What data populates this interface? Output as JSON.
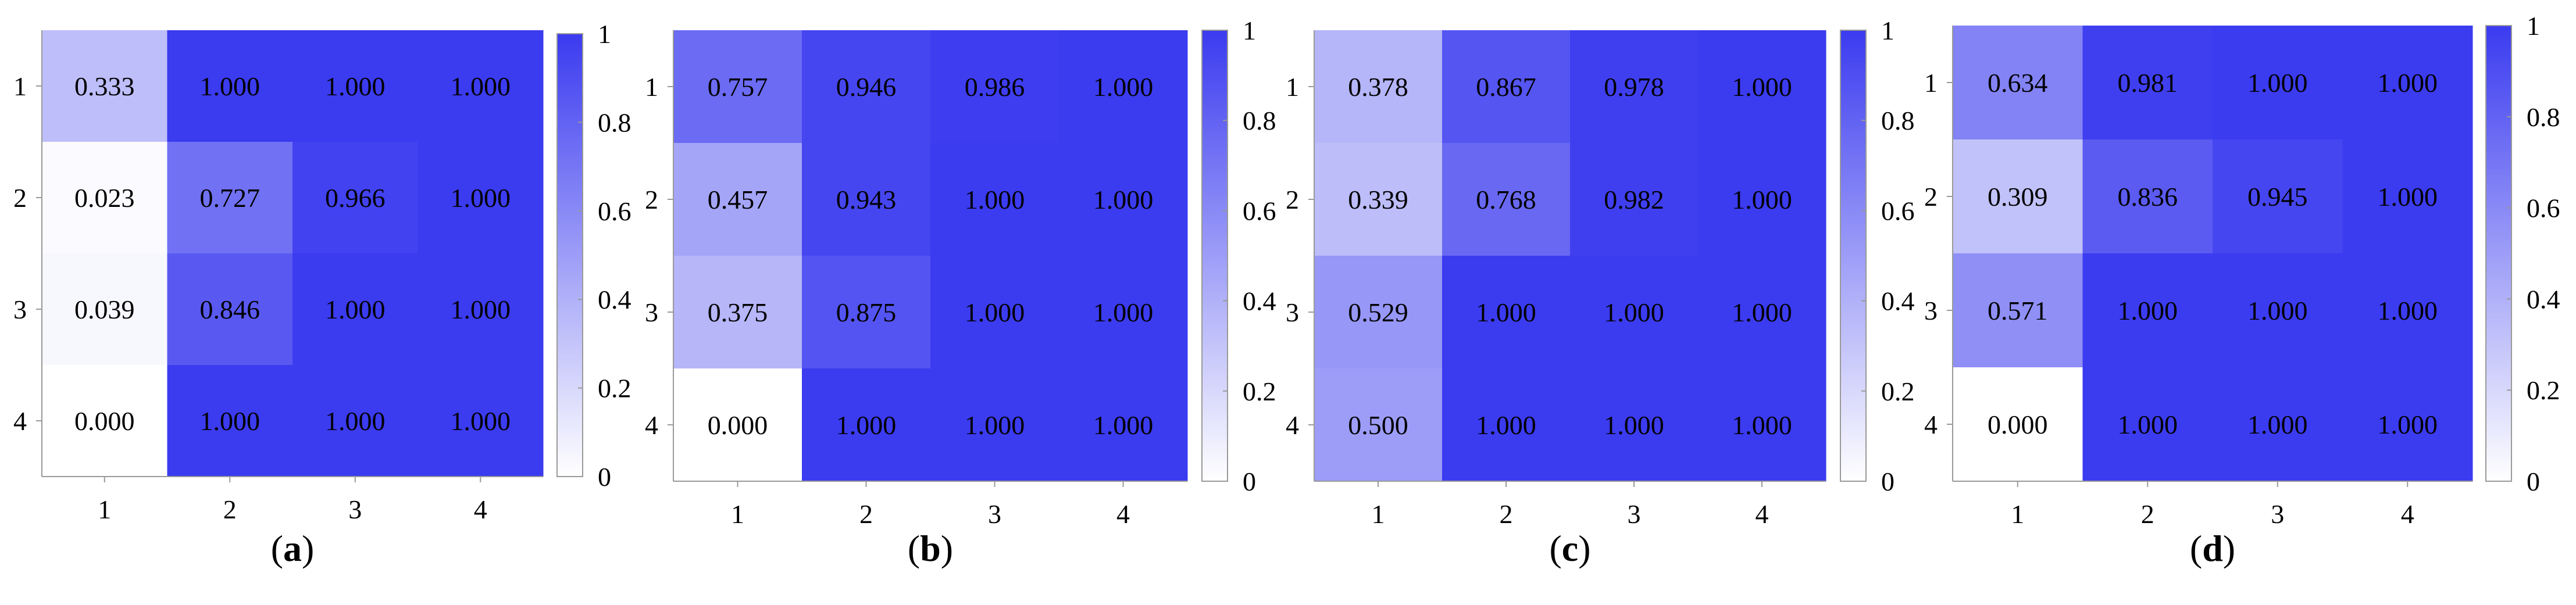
{
  "chart_data": [
    {
      "type": "heatmap",
      "panel_label": "a",
      "x_categories": [
        "1",
        "2",
        "3",
        "4"
      ],
      "y_categories": [
        "1",
        "2",
        "3",
        "4"
      ],
      "values": [
        [
          0.333,
          1.0,
          1.0,
          1.0
        ],
        [
          0.023,
          0.727,
          0.966,
          1.0
        ],
        [
          0.039,
          0.846,
          1.0,
          1.0
        ],
        [
          0.0,
          1.0,
          1.0,
          1.0
        ]
      ],
      "labels": [
        [
          "0.333",
          "1.000",
          "1.000",
          "1.000"
        ],
        [
          "0.023",
          "0.727",
          "0.966",
          "1.000"
        ],
        [
          "0.039",
          "0.846",
          "1.000",
          "1.000"
        ],
        [
          "0.000",
          "1.000",
          "1.000",
          "1.000"
        ]
      ],
      "colorbar": {
        "range": [
          0,
          1
        ],
        "ticks": [
          "0",
          "0.2",
          "0.4",
          "0.6",
          "0.8",
          "1"
        ]
      }
    },
    {
      "type": "heatmap",
      "panel_label": "b",
      "x_categories": [
        "1",
        "2",
        "3",
        "4"
      ],
      "y_categories": [
        "1",
        "2",
        "3",
        "4"
      ],
      "values": [
        [
          0.757,
          0.946,
          0.986,
          1.0
        ],
        [
          0.457,
          0.943,
          1.0,
          1.0
        ],
        [
          0.375,
          0.875,
          1.0,
          1.0
        ],
        [
          0.0,
          1.0,
          1.0,
          1.0
        ]
      ],
      "labels": [
        [
          "0.757",
          "0.946",
          "0.986",
          "1.000"
        ],
        [
          "0.457",
          "0.943",
          "1.000",
          "1.000"
        ],
        [
          "0.375",
          "0.875",
          "1.000",
          "1.000"
        ],
        [
          "0.000",
          "1.000",
          "1.000",
          "1.000"
        ]
      ],
      "colorbar": {
        "range": [
          0,
          1
        ],
        "ticks": [
          "0",
          "0.2",
          "0.4",
          "0.6",
          "0.8",
          "1"
        ]
      }
    },
    {
      "type": "heatmap",
      "panel_label": "c",
      "x_categories": [
        "1",
        "2",
        "3",
        "4"
      ],
      "y_categories": [
        "1",
        "2",
        "3",
        "4"
      ],
      "values": [
        [
          0.378,
          0.867,
          0.978,
          1.0
        ],
        [
          0.339,
          0.768,
          0.982,
          1.0
        ],
        [
          0.529,
          1.0,
          1.0,
          1.0
        ],
        [
          0.5,
          1.0,
          1.0,
          1.0
        ]
      ],
      "labels": [
        [
          "0.378",
          "0.867",
          "0.978",
          "1.000"
        ],
        [
          "0.339",
          "0.768",
          "0.982",
          "1.000"
        ],
        [
          "0.529",
          "1.000",
          "1.000",
          "1.000"
        ],
        [
          "0.500",
          "1.000",
          "1.000",
          "1.000"
        ]
      ],
      "colorbar": {
        "range": [
          0,
          1
        ],
        "ticks": [
          "0",
          "0.2",
          "0.4",
          "0.6",
          "0.8",
          "1"
        ]
      }
    },
    {
      "type": "heatmap",
      "panel_label": "d",
      "x_categories": [
        "1",
        "2",
        "3",
        "4"
      ],
      "y_categories": [
        "1",
        "2",
        "3",
        "4"
      ],
      "values": [
        [
          0.634,
          0.981,
          1.0,
          1.0
        ],
        [
          0.309,
          0.836,
          0.945,
          1.0
        ],
        [
          0.571,
          1.0,
          1.0,
          1.0
        ],
        [
          0.0,
          1.0,
          1.0,
          1.0
        ]
      ],
      "labels": [
        [
          "0.634",
          "0.981",
          "1.000",
          "1.000"
        ],
        [
          "0.309",
          "0.836",
          "0.945",
          "1.000"
        ],
        [
          "0.571",
          "1.000",
          "1.000",
          "1.000"
        ],
        [
          "0.000",
          "1.000",
          "1.000",
          "1.000"
        ]
      ],
      "colorbar": {
        "range": [
          0,
          1
        ],
        "ticks": [
          "0",
          "0.2",
          "0.4",
          "0.6",
          "0.8",
          "1"
        ]
      }
    }
  ],
  "colors": {
    "high": "#3b3bf0",
    "low": "#ffffff",
    "axis": "#999999"
  }
}
